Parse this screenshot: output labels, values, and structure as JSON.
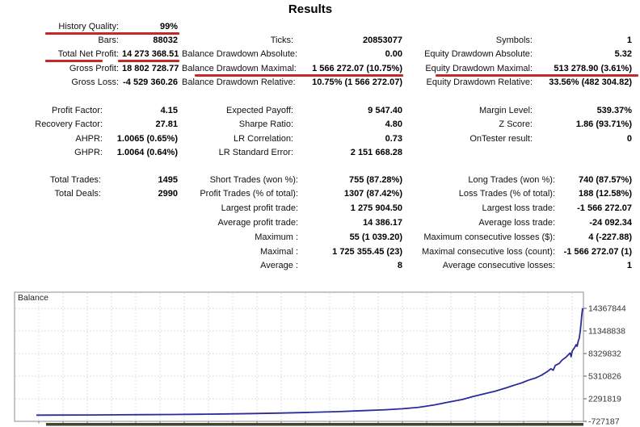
{
  "title": "Results",
  "accent_red": "#c62828",
  "stats": {
    "left": {
      "groups": [
        {
          "rows": [
            {
              "label": "History Quality:",
              "value": "99%",
              "highlight": "full"
            },
            {
              "label": "Bars:",
              "value": "88032"
            },
            {
              "label": "Total Net Profit:",
              "value": "14 273 368.51",
              "highlight": "split"
            },
            {
              "label": "Gross Profit:",
              "value": "18 802 728.77"
            },
            {
              "label": "Gross Loss:",
              "value": "-4 529 360.26"
            }
          ]
        },
        {
          "rows": [
            {
              "label": "Profit Factor:",
              "value": "4.15"
            },
            {
              "label": "Recovery Factor:",
              "value": "27.81"
            },
            {
              "label": "AHPR:",
              "value": "1.0065 (0.65%)"
            },
            {
              "label": "GHPR:",
              "value": "1.0064 (0.64%)"
            }
          ]
        },
        {
          "rows": [
            {
              "label": "Total Trades:",
              "value": "1495"
            },
            {
              "label": "Total Deals:",
              "value": "2990"
            }
          ]
        }
      ]
    },
    "middle": {
      "groups": [
        {
          "rows": [
            {
              "label": "Ticks:",
              "value": "20853077"
            },
            {
              "label": "Balance Drawdown Absolute:",
              "value": "0.00"
            },
            {
              "label": "Balance Drawdown Maximal:",
              "value": "1 566 272.07 (10.75%)",
              "highlight": "full"
            },
            {
              "label": "Balance Drawdown Relative:",
              "value": "10.75% (1 566 272.07)"
            }
          ]
        },
        {
          "rows": [
            {
              "label": "Expected Payoff:",
              "value": "9 547.40"
            },
            {
              "label": "Sharpe Ratio:",
              "value": "4.80"
            },
            {
              "label": "LR Correlation:",
              "value": "0.73"
            },
            {
              "label": "LR Standard Error:",
              "value": "2 151 668.28"
            }
          ]
        },
        {
          "rows": [
            {
              "label": "Short Trades (won %):",
              "value": "755 (87.28%)"
            },
            {
              "label": "Profit Trades (% of total):",
              "value": "1307 (87.42%)"
            },
            {
              "label": "Largest profit trade:",
              "value": "1 275 904.50"
            },
            {
              "label": "Average profit trade:",
              "value": "14 386.17"
            },
            {
              "label": "Maximum :",
              "value": "55 (1 039.20)"
            },
            {
              "label": "Maximal :",
              "value": "1 725 355.45 (23)"
            },
            {
              "label": "Average :",
              "value": "8"
            }
          ]
        }
      ]
    },
    "right": {
      "groups": [
        {
          "rows": [
            {
              "label": "Symbols:",
              "value": "1"
            },
            {
              "label": "Equity Drawdown Absolute:",
              "value": "5.32"
            },
            {
              "label": "Equity Drawdown Maximal:",
              "value": "513 278.90 (3.61%)",
              "highlight": "full"
            },
            {
              "label": "Equity Drawdown Relative:",
              "value": "33.56% (482 304.82)"
            }
          ]
        },
        {
          "rows": [
            {
              "label": "Margin Level:",
              "value": "539.37%"
            },
            {
              "label": "Z Score:",
              "value": "1.86 (93.71%)"
            },
            {
              "label": "OnTester result:",
              "value": "0"
            }
          ]
        },
        {
          "rows": [
            {
              "label": "Long Trades (won %):",
              "value": "740 (87.57%)"
            },
            {
              "label": "Loss Trades (% of total):",
              "value": "188 (12.58%)"
            },
            {
              "label": "Largest loss trade:",
              "value": "-1 566 272.07"
            },
            {
              "label": "Average loss trade:",
              "value": "-24 092.34"
            },
            {
              "label": "Maximum consecutive losses ($):",
              "value": "4 (-227.88)"
            },
            {
              "label": "Maximal consecutive loss (count):",
              "value": "-1 566 272.07 (1)"
            },
            {
              "label": "Average consecutive losses:",
              "value": "1"
            }
          ]
        }
      ]
    }
  },
  "chart_data": {
    "type": "line",
    "title": "Balance",
    "legend_position": "top-left-inside",
    "grid": true,
    "line_color": "#2b2b9b",
    "grid_color": "#d4d4d4",
    "border_color": "#8c8c8c",
    "strip_color": "#444432",
    "ylim": [
      -727187,
      14367844
    ],
    "y_ticks": [
      14367844,
      11348838,
      8329832,
      5310826,
      2291819,
      -727187
    ],
    "series": [
      {
        "name": "Balance",
        "points": [
          [
            0,
            100000
          ],
          [
            0.05,
            110000
          ],
          [
            0.1,
            125000
          ],
          [
            0.15,
            142000
          ],
          [
            0.2,
            163000
          ],
          [
            0.25,
            190000
          ],
          [
            0.3,
            225000
          ],
          [
            0.35,
            268000
          ],
          [
            0.4,
            320000
          ],
          [
            0.45,
            385000
          ],
          [
            0.5,
            465000
          ],
          [
            0.55,
            570000
          ],
          [
            0.6,
            710000
          ],
          [
            0.64,
            830000
          ],
          [
            0.67,
            950000
          ],
          [
            0.7,
            1150000
          ],
          [
            0.73,
            1480000
          ],
          [
            0.75,
            1780000
          ],
          [
            0.78,
            2200000
          ],
          [
            0.8,
            2600000
          ],
          [
            0.82,
            2950000
          ],
          [
            0.84,
            3300000
          ],
          [
            0.86,
            3750000
          ],
          [
            0.875,
            4100000
          ],
          [
            0.89,
            4450000
          ],
          [
            0.9,
            4750000
          ],
          [
            0.915,
            5100000
          ],
          [
            0.925,
            5450000
          ],
          [
            0.935,
            5900000
          ],
          [
            0.942,
            6300000
          ],
          [
            0.946,
            6100000
          ],
          [
            0.95,
            6750000
          ],
          [
            0.957,
            7000000
          ],
          [
            0.963,
            7500000
          ],
          [
            0.969,
            7800000
          ],
          [
            0.973,
            8100000
          ],
          [
            0.977,
            8400000
          ],
          [
            0.979,
            7900000
          ],
          [
            0.981,
            8700000
          ],
          [
            0.985,
            9100000
          ],
          [
            0.988,
            9500000
          ],
          [
            0.99,
            9300000
          ],
          [
            0.992,
            10000000
          ],
          [
            0.994,
            10400000
          ],
          [
            0.9955,
            11300000
          ],
          [
            0.997,
            12300000
          ],
          [
            0.998,
            13100000
          ],
          [
            0.999,
            13800000
          ],
          [
            1,
            14373368
          ]
        ]
      }
    ]
  }
}
